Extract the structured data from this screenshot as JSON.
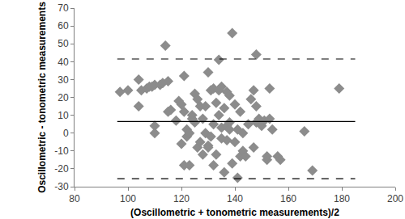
{
  "chart_data": {
    "type": "scatter",
    "x_label": "(Oscillometric + tonometric measurements)/2",
    "y_label": "Oscillometric - tonometric measurements",
    "xlim": [
      80,
      200
    ],
    "xticks": [
      80,
      100,
      120,
      140,
      160,
      180,
      200
    ],
    "ylim": [
      -30,
      70
    ],
    "yticks": [
      -30,
      -20,
      -10,
      0,
      10,
      20,
      30,
      40,
      50,
      60,
      70
    ],
    "grid": false,
    "series": [
      {
        "type": "scatter",
        "marker": "diamond",
        "color": "#8c8c8c",
        "x": [
          97,
          100,
          104,
          104,
          105,
          107,
          108,
          109,
          110,
          110,
          110,
          112,
          113,
          114,
          115,
          115,
          116,
          118,
          119,
          120,
          120,
          121,
          121,
          121,
          122,
          122,
          123,
          123,
          124,
          124,
          125,
          125,
          126,
          126,
          127,
          127,
          128,
          128,
          129,
          129,
          130,
          130,
          130,
          131,
          131,
          132,
          132,
          132,
          133,
          133,
          134,
          134,
          134,
          135,
          135,
          135,
          136,
          136,
          137,
          137,
          137,
          138,
          138,
          138,
          139,
          139,
          140,
          140,
          141,
          141,
          142,
          142,
          143,
          143,
          144,
          145,
          146,
          147,
          147,
          148,
          148,
          148,
          149,
          150,
          151,
          152,
          152,
          153,
          153,
          154,
          156,
          157,
          166,
          169,
          179
        ],
        "values": [
          23,
          24,
          30,
          15,
          24,
          25,
          26,
          26,
          27,
          4,
          0,
          27,
          28,
          49,
          29,
          12,
          13,
          7,
          18,
          16,
          -6,
          32,
          12,
          -18,
          2,
          -2,
          0,
          -18,
          10,
          8,
          22,
          6,
          19,
          -8,
          15,
          -5,
          8,
          -12,
          15,
          0,
          -7,
          -8,
          34,
          24,
          -2,
          5,
          25,
          -18,
          17,
          -12,
          24,
          10,
          41,
          26,
          3,
          -3,
          14,
          -22,
          23,
          4,
          -4,
          21,
          6,
          2,
          56,
          -17,
          16,
          -5,
          -25,
          2,
          12,
          -13,
          0,
          -10,
          -13,
          5,
          19,
          24,
          -8,
          44,
          15,
          6,
          8,
          4,
          7,
          -15,
          -13,
          25,
          8,
          2,
          -13,
          -15,
          1,
          -21,
          25
        ]
      },
      {
        "type": "line",
        "line_style": "solid",
        "color": "#000000",
        "x": [
          96,
          185
        ],
        "values": [
          6.5,
          6.5
        ]
      },
      {
        "type": "line",
        "line_style": "dashed",
        "color": "#000000",
        "x": [
          96,
          185
        ],
        "values": [
          41.5,
          41.5
        ]
      },
      {
        "type": "line",
        "line_style": "dashed",
        "color": "#000000",
        "x": [
          96,
          185
        ],
        "values": [
          -25.5,
          -25.5
        ]
      }
    ]
  }
}
